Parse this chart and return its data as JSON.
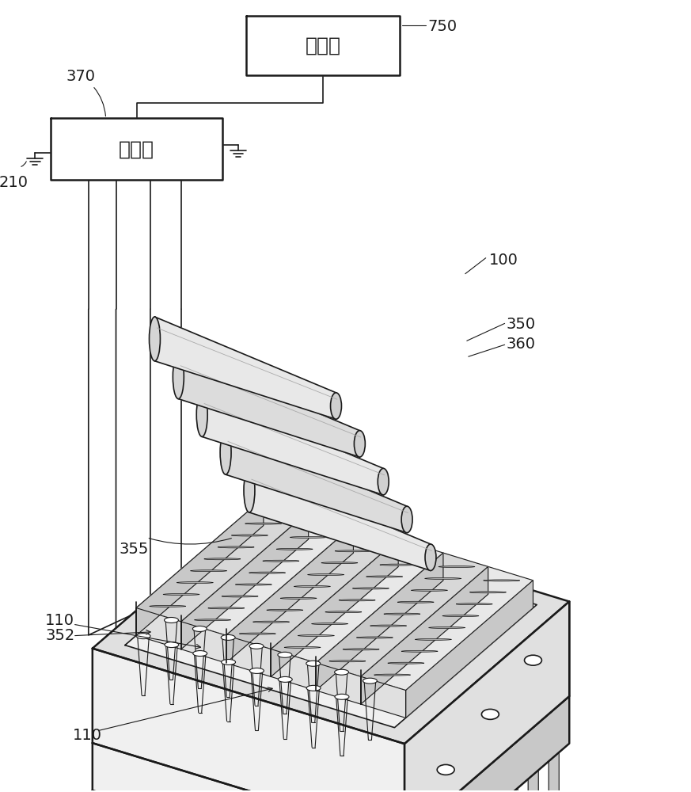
{
  "bg_color": "#ffffff",
  "lc": "#1a1a1a",
  "lw_main": 1.8,
  "lw_med": 1.2,
  "lw_thin": 0.8,
  "processor_label": "处理器",
  "controller_label": "控制器",
  "ref_750": "750",
  "ref_370": "370",
  "ref_210": "210",
  "ref_100": "100",
  "ref_350": "350",
  "ref_355": "355",
  "ref_352": "352",
  "ref_360": "360",
  "ref_110a": "110",
  "ref_110b": "110",
  "face_light": "#f0f0f0",
  "face_mid": "#e0e0e0",
  "face_dark": "#c8c8c8",
  "face_white": "#ffffff"
}
